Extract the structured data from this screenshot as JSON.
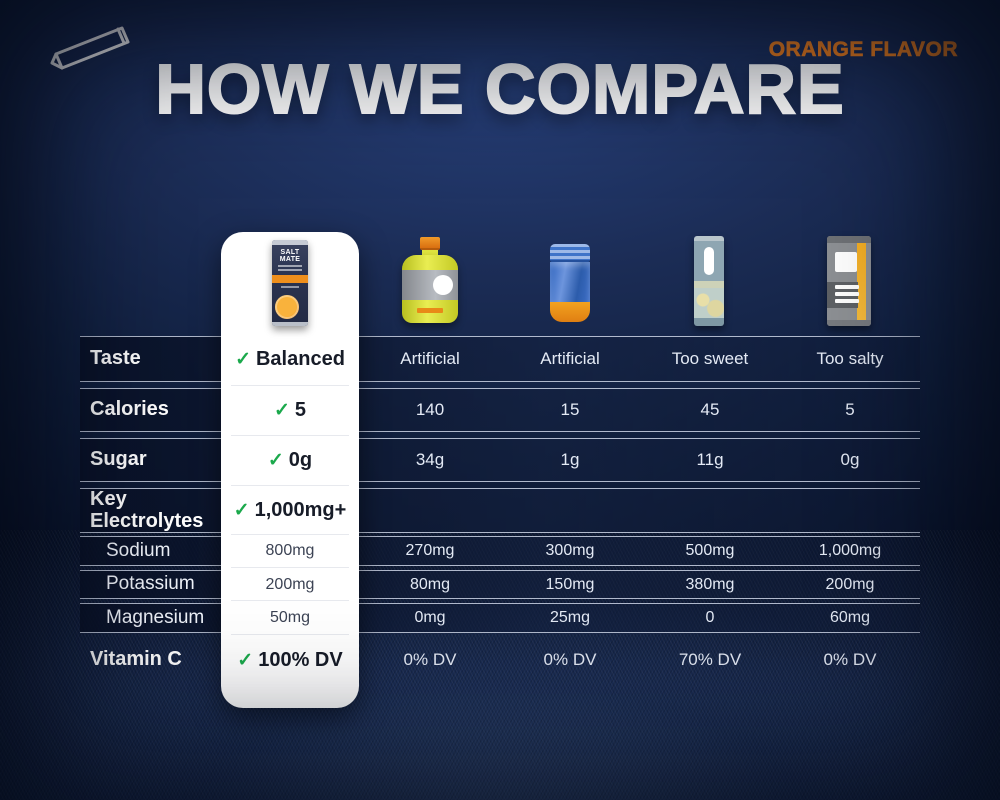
{
  "page": {
    "title": "HOW WE COMPARE",
    "flavor_badge": "ORANGE FLAVOR"
  },
  "icons": {
    "check": "✓",
    "stick_outline": "stick-packet-outline-icon"
  },
  "colors": {
    "accent_orange": "#F5831F",
    "check_green": "#1BA94C",
    "background_navy": "#11203F",
    "card_white": "#FFFFFF",
    "separator_line": "#CBD5E6"
  },
  "brand_packet": {
    "name_line1": "SALT",
    "name_line2": "MATE"
  },
  "products": [
    {
      "name": "brand-electrolyte-stick",
      "description": "navy and orange electrolyte stick packet (highlighted brand)"
    },
    {
      "name": "sports-drink-bottle",
      "description": "yellow sports drink bottle with orange cap and grey label"
    },
    {
      "name": "tablet-tube",
      "description": "blue effervescent tablet tube with orange base"
    },
    {
      "name": "hydration-powder-stick",
      "description": "pale teal hydration powder stick packet"
    },
    {
      "name": "salt-powder-stick",
      "description": "grey electrolyte stick packet with orange stripe"
    }
  ],
  "table": {
    "rows": [
      {
        "label": "Taste",
        "sub": false,
        "brand": {
          "check": true,
          "value": "Balanced"
        },
        "values": [
          "Artificial",
          "Artificial",
          "Too sweet",
          "Too salty"
        ]
      },
      {
        "label": "Calories",
        "sub": false,
        "brand": {
          "check": true,
          "value": "5"
        },
        "values": [
          "140",
          "15",
          "45",
          "5"
        ]
      },
      {
        "label": "Sugar",
        "sub": false,
        "brand": {
          "check": true,
          "value": "0g"
        },
        "values": [
          "34g",
          "1g",
          "11g",
          "0g"
        ]
      },
      {
        "label": "Key Electrolytes",
        "sub": false,
        "brand": {
          "check": true,
          "value": "1,000mg+"
        },
        "values": [
          "",
          "",
          "",
          ""
        ]
      },
      {
        "label": "Sodium",
        "sub": true,
        "brand": {
          "check": false,
          "value": "800mg"
        },
        "values": [
          "270mg",
          "300mg",
          "500mg",
          "1,000mg"
        ]
      },
      {
        "label": "Potassium",
        "sub": true,
        "brand": {
          "check": false,
          "value": "200mg"
        },
        "values": [
          "80mg",
          "150mg",
          "380mg",
          "200mg"
        ]
      },
      {
        "label": "Magnesium",
        "sub": true,
        "brand": {
          "check": false,
          "value": "50mg"
        },
        "values": [
          "0mg",
          "25mg",
          "0",
          "60mg"
        ]
      },
      {
        "label": "Vitamin C",
        "sub": false,
        "brand": {
          "check": true,
          "value": "100% DV"
        },
        "values": [
          "0% DV",
          "0% DV",
          "70% DV",
          "0% DV"
        ]
      }
    ]
  },
  "chart_data": {
    "type": "table",
    "title": "HOW WE COMPARE",
    "columns": [
      "Attribute",
      "Brand electrolyte stick (highlighted)",
      "Sports drink bottle",
      "Tablet tube",
      "Hydration powder stick",
      "Salt powder stick"
    ],
    "rows": [
      [
        "Taste",
        "Balanced",
        "Artificial",
        "Artificial",
        "Too sweet",
        "Too salty"
      ],
      [
        "Calories",
        "5",
        "140",
        "15",
        "45",
        "5"
      ],
      [
        "Sugar",
        "0g",
        "34g",
        "1g",
        "11g",
        "0g"
      ],
      [
        "Key Electrolytes",
        "1,000mg+",
        "",
        "",
        "",
        ""
      ],
      [
        "Sodium",
        "800mg",
        "270mg",
        "300mg",
        "500mg",
        "1,000mg"
      ],
      [
        "Potassium",
        "200mg",
        "80mg",
        "150mg",
        "380mg",
        "200mg"
      ],
      [
        "Magnesium",
        "50mg",
        "0mg",
        "25mg",
        "0",
        "60mg"
      ],
      [
        "Vitamin C",
        "100% DV",
        "0% DV",
        "0% DV",
        "70% DV",
        "0% DV"
      ]
    ],
    "checked_brand_rows": [
      "Taste",
      "Calories",
      "Sugar",
      "Key Electrolytes",
      "Vitamin C"
    ],
    "legend_position": "none",
    "grid": "horizontal separators only"
  }
}
